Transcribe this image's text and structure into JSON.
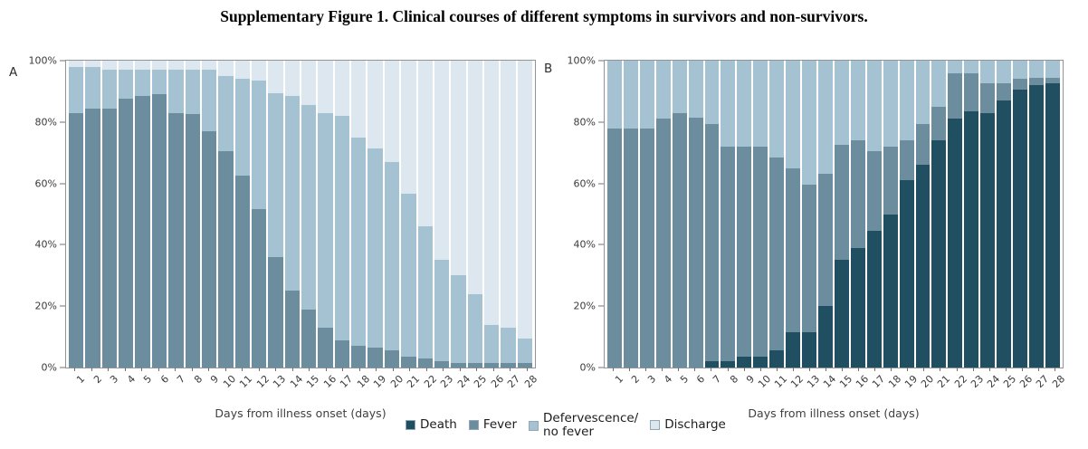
{
  "title": "Supplementary Figure 1. Clinical courses of different symptoms in survivors and non-survivors.",
  "panels": [
    {
      "letter": "A",
      "xlabel": "Days from illness onset (days)"
    },
    {
      "letter": "B",
      "xlabel": "Days from illness onset (days)"
    }
  ],
  "legend": [
    {
      "label": "Death",
      "color": "#1f4f61"
    },
    {
      "label": "Fever",
      "color": "#6b8d9e"
    },
    {
      "label": "Defervescence/\nno fever",
      "color": "#a5c2d2"
    },
    {
      "label": "Discharge",
      "color": "#dce7f0"
    }
  ],
  "chart_data": [
    {
      "type": "bar",
      "stacked": true,
      "panel": "A",
      "xlabel": "Days from illness onset (days)",
      "ylim": [
        0,
        100
      ],
      "x": [
        1,
        2,
        3,
        4,
        5,
        6,
        7,
        8,
        9,
        10,
        11,
        12,
        13,
        14,
        15,
        16,
        17,
        18,
        19,
        20,
        21,
        22,
        23,
        24,
        25,
        26,
        27,
        28
      ],
      "yticks": [
        {
          "label": "0%",
          "v": 0
        },
        {
          "label": "20%",
          "v": 20
        },
        {
          "label": "40%",
          "v": 40
        },
        {
          "label": "60%",
          "v": 60
        },
        {
          "label": "80%",
          "v": 80
        },
        {
          "label": "100%",
          "v": 100
        }
      ],
      "series": [
        {
          "name": "Death",
          "color": "#1f4f61",
          "values": [
            0,
            0,
            0,
            0,
            0,
            0,
            0,
            0,
            0,
            0,
            0,
            0,
            0,
            0,
            0,
            0,
            0,
            0,
            0,
            0,
            0,
            0,
            0,
            0,
            0,
            0,
            0,
            0
          ]
        },
        {
          "name": "Fever",
          "color": "#6b8d9e",
          "values": [
            83,
            84.5,
            84.5,
            87.5,
            88.5,
            89,
            83,
            82.5,
            77,
            70.5,
            62.5,
            51.5,
            36,
            25,
            19,
            13,
            9,
            7,
            6.5,
            5.5,
            3.5,
            3,
            2,
            1.5,
            1.5,
            1.5,
            1.5,
            1.5
          ]
        },
        {
          "name": "Defervescence/no fever",
          "color": "#a5c2d2",
          "values": [
            15,
            13.5,
            12.5,
            9.5,
            8.5,
            8,
            14,
            14.5,
            20,
            24.5,
            31.5,
            42,
            53.5,
            63.5,
            66.5,
            70,
            73,
            68,
            65,
            61.5,
            53,
            43,
            33,
            28.5,
            22.5,
            12.5,
            11.5,
            8
          ]
        },
        {
          "name": "Discharge",
          "color": "#dce7f0",
          "values": [
            2,
            2,
            3,
            3,
            3,
            3,
            3,
            3,
            3,
            5,
            6,
            6.5,
            10.5,
            11.5,
            14.5,
            17,
            18,
            25,
            28.5,
            33,
            43.5,
            54,
            65,
            70,
            76,
            86,
            87,
            90.5
          ]
        }
      ]
    },
    {
      "type": "bar",
      "stacked": true,
      "panel": "B",
      "xlabel": "Days from illness onset (days)",
      "ylim": [
        0,
        100
      ],
      "x": [
        1,
        2,
        3,
        4,
        5,
        6,
        7,
        8,
        9,
        10,
        11,
        12,
        13,
        14,
        15,
        16,
        17,
        18,
        19,
        20,
        21,
        22,
        23,
        24,
        25,
        26,
        27,
        28
      ],
      "yticks": [
        {
          "label": "0%",
          "v": 0
        },
        {
          "label": "20%",
          "v": 20
        },
        {
          "label": "40%",
          "v": 40
        },
        {
          "label": "60%",
          "v": 60
        },
        {
          "label": "80%",
          "v": 80
        },
        {
          "label": "100%",
          "v": 100
        }
      ],
      "series": [
        {
          "name": "Death",
          "color": "#1f4f61",
          "values": [
            0,
            0,
            0,
            0,
            0,
            0,
            2,
            2,
            3.5,
            3.5,
            5.5,
            11.5,
            11.5,
            20,
            35,
            39,
            44.5,
            50,
            61,
            66,
            74,
            81,
            83.5,
            83,
            87,
            90.5,
            92,
            92.5
          ]
        },
        {
          "name": "Fever",
          "color": "#6b8d9e",
          "values": [
            78,
            78,
            78,
            81,
            83,
            81.5,
            77.5,
            70,
            68.5,
            68.5,
            63,
            53.5,
            48,
            43,
            37.5,
            35,
            26,
            22,
            13,
            13.5,
            11,
            15,
            12.5,
            9.5,
            5.5,
            3.5,
            2.5,
            2
          ]
        },
        {
          "name": "Defervescence/no fever",
          "color": "#a5c2d2",
          "values": [
            22,
            22,
            22,
            19,
            17,
            18.5,
            20.5,
            28,
            28,
            28,
            31.5,
            35,
            40.5,
            37,
            27.5,
            26,
            29.5,
            28,
            26,
            20.5,
            15,
            4,
            4,
            7.5,
            7.5,
            6,
            5.5,
            5.5
          ]
        },
        {
          "name": "Discharge",
          "color": "#dce7f0",
          "values": [
            0,
            0,
            0,
            0,
            0,
            0,
            0,
            0,
            0,
            0,
            0,
            0,
            0,
            0,
            0,
            0,
            0,
            0,
            0,
            0,
            0,
            0,
            0,
            0,
            0,
            0,
            0,
            0
          ]
        }
      ]
    }
  ]
}
